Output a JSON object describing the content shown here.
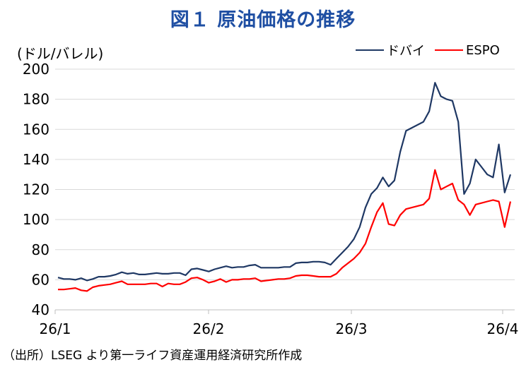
{
  "chart_data": {
    "type": "line",
    "title": "図１ 原油価格の推移",
    "ylabel": "(ドル/バレル)",
    "source": "（出所）LSEG より第一ライフ資産運用経済研究所作成",
    "ylim": [
      40,
      200
    ],
    "yticks": [
      40,
      60,
      80,
      100,
      120,
      140,
      160,
      180,
      200
    ],
    "xticks": [
      "26/1",
      "26/2",
      "26/3",
      "26/4"
    ],
    "grid": "horizontal",
    "legend_position": "top-right",
    "series": [
      {
        "name": "ドバイ",
        "color": "#1f3864",
        "values": [
          61.5,
          60.5,
          60.5,
          60.0,
          61.0,
          59.5,
          60.5,
          62.0,
          62.0,
          62.5,
          63.5,
          65.0,
          64.0,
          64.5,
          63.5,
          63.5,
          64.0,
          64.5,
          64.0,
          64.0,
          64.5,
          64.5,
          63.0,
          67.0,
          67.5,
          66.5,
          65.5,
          67.0,
          68.0,
          69.0,
          68.0,
          68.5,
          68.5,
          69.5,
          70.0,
          68.0,
          68.0,
          68.0,
          68.0,
          68.5,
          68.5,
          71.0,
          71.5,
          71.5,
          72.0,
          72.0,
          71.5,
          70.0,
          74.0,
          78.0,
          82.0,
          87.0,
          95.0,
          108.0,
          117.0,
          121.0,
          128.0,
          122.0,
          126.0,
          145.0,
          159.0,
          161.0,
          163.0,
          165.0,
          172.0,
          191.0,
          182.0,
          180.0,
          179.0,
          165.0,
          117.0,
          124.0,
          140.0,
          135.0,
          130.0,
          128.0,
          150.0,
          118.0,
          130.0
        ]
      },
      {
        "name": "ESPO",
        "color": "#ff0000",
        "values": [
          53.5,
          53.5,
          54.0,
          54.5,
          53.0,
          52.5,
          55.0,
          56.0,
          56.5,
          57.0,
          58.0,
          59.0,
          57.0,
          57.0,
          57.0,
          57.0,
          57.5,
          57.5,
          55.5,
          57.5,
          57.0,
          57.0,
          58.5,
          61.0,
          61.5,
          60.0,
          58.0,
          59.0,
          60.5,
          58.5,
          60.0,
          60.0,
          60.5,
          60.5,
          61.0,
          59.0,
          59.5,
          60.0,
          60.5,
          60.5,
          61.0,
          62.5,
          63.0,
          63.0,
          62.5,
          62.0,
          62.0,
          62.0,
          64.0,
          68.0,
          71.0,
          74.0,
          78.0,
          84.0,
          95.0,
          105.0,
          111.0,
          97.0,
          96.0,
          103.0,
          107.0,
          108.0,
          109.0,
          110.0,
          114.0,
          133.0,
          120.0,
          122.0,
          124.0,
          113.0,
          110.0,
          103.0,
          110.0,
          111.0,
          112.0,
          113.0,
          112.0,
          95.0,
          112.0
        ]
      }
    ]
  }
}
